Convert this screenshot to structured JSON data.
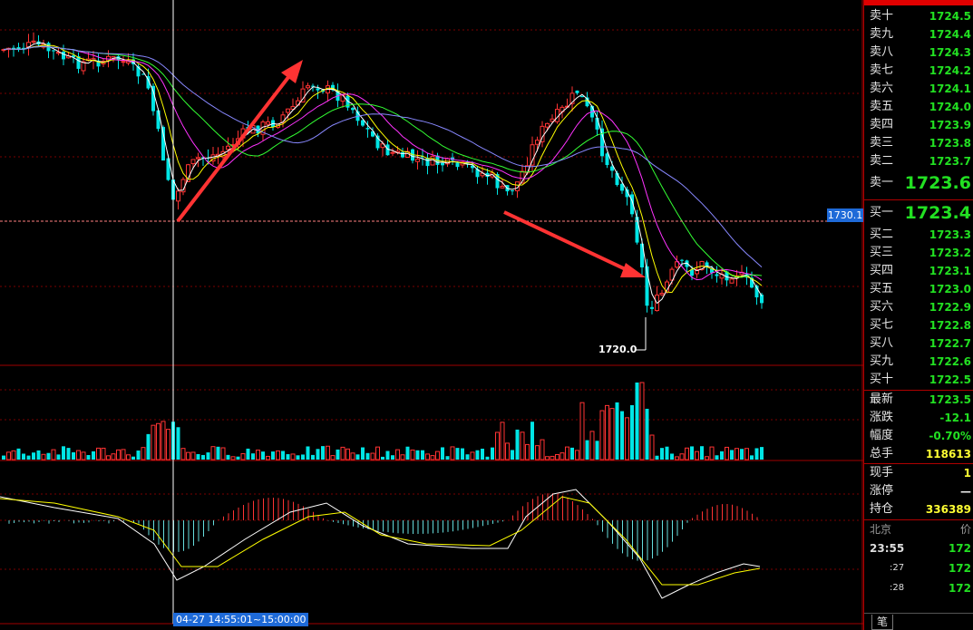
{
  "colors": {
    "up": "#ff3333",
    "down": "#00e5e5",
    "ma1": "#ffffff",
    "ma2": "#ffff00",
    "ma3": "#ff33ff",
    "ma4": "#33ff33",
    "ma5": "#8888ff",
    "accent": "#1e6ad8"
  },
  "chart": {
    "crosshair_price": "1730.1",
    "crosshair_time": "04-27 14:55:01~15:00:00",
    "low_label": "1720.0",
    "annotations": [
      "up-arrow",
      "down-arrow"
    ]
  },
  "orderbook": {
    "asks": [
      {
        "label": "卖十",
        "price": "1724.5"
      },
      {
        "label": "卖九",
        "price": "1724.4"
      },
      {
        "label": "卖八",
        "price": "1724.3"
      },
      {
        "label": "卖七",
        "price": "1724.2"
      },
      {
        "label": "卖六",
        "price": "1724.1"
      },
      {
        "label": "卖五",
        "price": "1724.0"
      },
      {
        "label": "卖四",
        "price": "1723.9"
      },
      {
        "label": "卖三",
        "price": "1723.8"
      },
      {
        "label": "卖二",
        "price": "1723.7"
      },
      {
        "label": "卖一",
        "price": "1723.6"
      }
    ],
    "bids": [
      {
        "label": "买一",
        "price": "1723.4"
      },
      {
        "label": "买二",
        "price": "1723.3"
      },
      {
        "label": "买三",
        "price": "1723.2"
      },
      {
        "label": "买四",
        "price": "1723.1"
      },
      {
        "label": "买五",
        "price": "1723.0"
      },
      {
        "label": "买六",
        "price": "1722.9"
      },
      {
        "label": "买七",
        "price": "1722.8"
      },
      {
        "label": "买八",
        "price": "1722.7"
      },
      {
        "label": "买九",
        "price": "1722.6"
      },
      {
        "label": "买十",
        "price": "1722.5"
      }
    ]
  },
  "stats": {
    "last": {
      "label": "最新",
      "value": "1723.5"
    },
    "change": {
      "label": "涨跌",
      "value": "-12.1"
    },
    "pct": {
      "label": "幅度",
      "value": "-0.70%"
    },
    "volume": {
      "label": "总手",
      "value": "118613"
    },
    "current": {
      "label": "现手",
      "value": "1"
    },
    "limit": {
      "label": "涨停",
      "value": "—"
    },
    "oi": {
      "label": "持仓",
      "value": "336389"
    }
  },
  "ticks": {
    "header": "北京",
    "rows": [
      {
        "time": "23:55",
        "price": "172"
      },
      {
        "time": ":27",
        "price": "172"
      },
      {
        "time": ":28",
        "price": "172"
      }
    ],
    "header_right": "价"
  },
  "tab": {
    "label": "笔"
  }
}
